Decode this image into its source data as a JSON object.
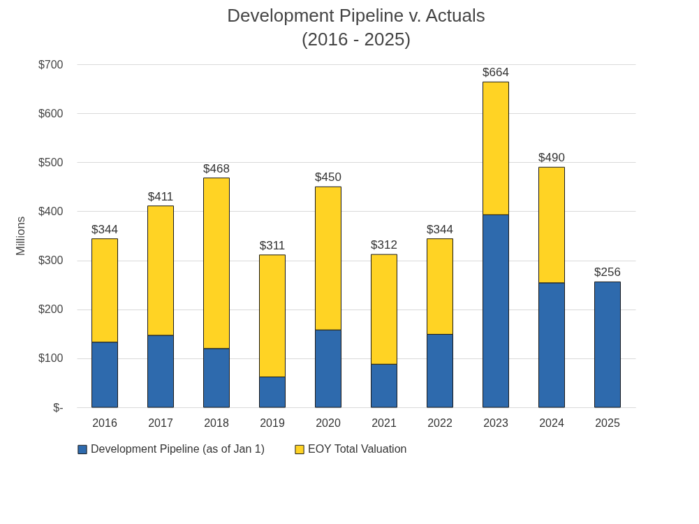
{
  "chart_data": {
    "type": "bar",
    "title": "Development Pipeline v. Actuals\n(2016 - 2025)",
    "ylabel": "Millions",
    "categories": [
      "2016",
      "2017",
      "2018",
      "2019",
      "2020",
      "2021",
      "2022",
      "2023",
      "2024",
      "2025"
    ],
    "stacked": true,
    "series": [
      {
        "name": "Development Pipeline (as of Jan 1)",
        "color": "#2e6aad",
        "values": [
          133,
          147,
          120,
          62,
          158,
          88,
          149,
          393,
          254,
          256
        ]
      },
      {
        "name": "EOY Total Valuation",
        "color": "#ffd324",
        "values": [
          211,
          264,
          348,
          249,
          292,
          224,
          195,
          271,
          236,
          null
        ]
      }
    ],
    "totals": [
      "$344",
      "$411",
      "$468",
      "$311",
      "$450",
      "$312",
      "$344",
      "$664",
      "$490",
      "$256"
    ],
    "ylim": [
      0,
      700
    ],
    "yticks": [
      {
        "value": 0,
        "label": "$-"
      },
      {
        "value": 100,
        "label": "$100"
      },
      {
        "value": 200,
        "label": "$200"
      },
      {
        "value": 300,
        "label": "$300"
      },
      {
        "value": 400,
        "label": "$400"
      },
      {
        "value": 500,
        "label": "$500"
      },
      {
        "value": 600,
        "label": "$600"
      },
      {
        "value": 700,
        "label": "$700"
      }
    ],
    "grid": "y",
    "legend": "bottom"
  }
}
